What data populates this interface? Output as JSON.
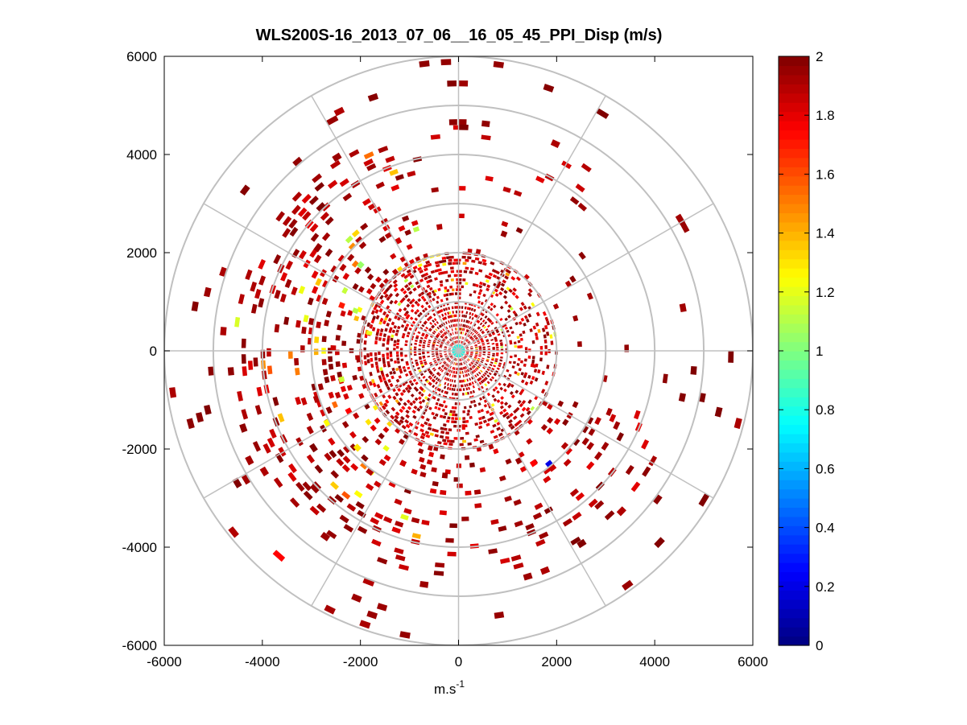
{
  "chart_data": {
    "type": "heatmap",
    "subtype": "polar-ppi-scan",
    "title": "WLS200S-16_2013_07_06__16_05_45_PPI_Disp (m/s)",
    "xlabel": "m.s",
    "xlabel_superscript": "-1",
    "ylabel": "",
    "xlim": [
      -6000,
      6000
    ],
    "ylim": [
      -6000,
      6000
    ],
    "xticks": [
      -6000,
      -4000,
      -2000,
      0,
      2000,
      4000,
      6000
    ],
    "yticks": [
      6000,
      4000,
      2000,
      0,
      -2000,
      -4000,
      -6000
    ],
    "xtick_labels": [
      "-6000",
      "-4000",
      "-2000",
      "0",
      "2000",
      "4000",
      "6000"
    ],
    "ytick_labels": [
      "6000",
      "4000",
      "2000",
      "0",
      "-2000",
      "-4000",
      "-6000"
    ],
    "range_rings": [
      1000,
      2000,
      3000,
      4000,
      5000,
      6000
    ],
    "azimuth_spokes_deg": [
      0,
      30,
      60,
      90,
      120,
      150,
      180,
      210,
      240,
      270,
      300,
      330
    ],
    "colorbar": {
      "colormap": "jet",
      "clim": [
        0,
        2
      ],
      "ticks": [
        0,
        0.2,
        0.4,
        0.6,
        0.8,
        1,
        1.2,
        1.4,
        1.6,
        1.8,
        2
      ],
      "tick_labels": [
        "0",
        "0.2",
        "0.4",
        "0.6",
        "0.8",
        "1",
        "1.2",
        "1.4",
        "1.6",
        "1.8",
        "2"
      ]
    },
    "field_summary": "Dispersion values mostly near 1.7-2.0 m/s (dark red), denser coverage in the west/south-west sectors out to ~4500 m, sparse returns beyond; scattered 1.0-1.4 m/s patches (yellow/green) around 1500-3000 m in the west; a few low values (~0.2) south-east near 2500 m.",
    "sample_cells": [
      {
        "az": 265,
        "r": 2000,
        "v": 1.9
      },
      {
        "az": 270,
        "r": 2500,
        "v": 1.85
      },
      {
        "az": 280,
        "r": 3000,
        "v": 1.95
      },
      {
        "az": 290,
        "r": 2500,
        "v": 1.7
      },
      {
        "az": 300,
        "r": 2000,
        "v": 1.8
      },
      {
        "az": 305,
        "r": 3500,
        "v": 1.95
      },
      {
        "az": 315,
        "r": 4000,
        "v": 2.0
      },
      {
        "az": 320,
        "r": 2000,
        "v": 1.9
      },
      {
        "az": 330,
        "r": 2500,
        "v": 1.85
      },
      {
        "az": 250,
        "r": 3000,
        "v": 1.9
      },
      {
        "az": 240,
        "r": 2500,
        "v": 1.75
      },
      {
        "az": 235,
        "r": 3500,
        "v": 2.0
      },
      {
        "az": 225,
        "r": 4000,
        "v": 1.95
      },
      {
        "az": 215,
        "r": 3000,
        "v": 1.9
      },
      {
        "az": 205,
        "r": 2500,
        "v": 1.85
      },
      {
        "az": 195,
        "r": 2000,
        "v": 1.9
      },
      {
        "az": 185,
        "r": 2500,
        "v": 1.95
      },
      {
        "az": 175,
        "r": 1500,
        "v": 1.8
      },
      {
        "az": 160,
        "r": 2000,
        "v": 1.9
      },
      {
        "az": 150,
        "r": 2500,
        "v": 1.95
      },
      {
        "az": 140,
        "r": 3000,
        "v": 1.85
      },
      {
        "az": 120,
        "r": 2000,
        "v": 1.9
      },
      {
        "az": 100,
        "r": 1500,
        "v": 1.8
      },
      {
        "az": 85,
        "r": 1200,
        "v": 1.7
      },
      {
        "az": 60,
        "r": 1000,
        "v": 1.85
      },
      {
        "az": 30,
        "r": 1500,
        "v": 1.9
      },
      {
        "az": 20,
        "r": 2500,
        "v": 1.95
      },
      {
        "az": 10,
        "r": 2000,
        "v": 1.9
      },
      {
        "az": 0,
        "r": 4500,
        "v": 2.0
      },
      {
        "az": 350,
        "r": 2500,
        "v": 1.9
      },
      {
        "az": 280,
        "r": 1800,
        "v": 1.2
      },
      {
        "az": 290,
        "r": 2200,
        "v": 1.1
      },
      {
        "az": 255,
        "r": 2400,
        "v": 1.15
      },
      {
        "az": 240,
        "r": 3000,
        "v": 1.25
      },
      {
        "az": 225,
        "r": 2800,
        "v": 1.3
      },
      {
        "az": 310,
        "r": 2600,
        "v": 1.05
      },
      {
        "az": 140,
        "r": 2900,
        "v": 0.2
      },
      {
        "az": 145,
        "r": 2700,
        "v": 1.75
      },
      {
        "az": 90,
        "r": 5500,
        "v": 2.0
      },
      {
        "az": 60,
        "r": 5200,
        "v": 1.95
      },
      {
        "az": 120,
        "r": 5800,
        "v": 2.0
      },
      {
        "az": 200,
        "r": 5000,
        "v": 1.9
      },
      {
        "az": 220,
        "r": 5500,
        "v": 1.75
      },
      {
        "az": 30,
        "r": 5600,
        "v": 2.0
      },
      {
        "az": 330,
        "r": 5300,
        "v": 1.95
      }
    ]
  }
}
